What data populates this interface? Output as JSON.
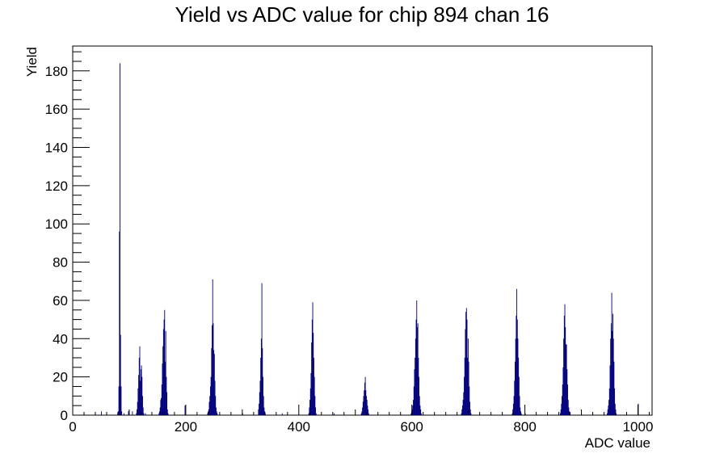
{
  "chart_data": {
    "type": "histogram",
    "title": "Yield vs ADC value for chip 894 chan 16",
    "xlabel": "ADC value",
    "ylabel": "Yield",
    "xlim": [
      0,
      1025
    ],
    "ylim": [
      0,
      193
    ],
    "x_ticks": [
      0,
      200,
      400,
      600,
      800,
      1000
    ],
    "y_ticks": [
      0,
      20,
      40,
      60,
      80,
      100,
      120,
      140,
      160,
      180
    ],
    "grid": false,
    "line_color": "#000080",
    "bins": [
      [
        50,
        2
      ],
      [
        79,
        1
      ],
      [
        80,
        2
      ],
      [
        81,
        15
      ],
      [
        82,
        96
      ],
      [
        83,
        184
      ],
      [
        84,
        42
      ],
      [
        85,
        15
      ],
      [
        86,
        2
      ],
      [
        90,
        1
      ],
      [
        98,
        2
      ],
      [
        105,
        2
      ],
      [
        112,
        1
      ],
      [
        113,
        3
      ],
      [
        114,
        7
      ],
      [
        115,
        14
      ],
      [
        116,
        21
      ],
      [
        117,
        30
      ],
      [
        118,
        36
      ],
      [
        119,
        18
      ],
      [
        120,
        24
      ],
      [
        121,
        26
      ],
      [
        122,
        20
      ],
      [
        123,
        10
      ],
      [
        124,
        4
      ],
      [
        125,
        1
      ],
      [
        128,
        1
      ],
      [
        152,
        1
      ],
      [
        153,
        2
      ],
      [
        154,
        4
      ],
      [
        155,
        8
      ],
      [
        156,
        9
      ],
      [
        157,
        16
      ],
      [
        158,
        27
      ],
      [
        159,
        36
      ],
      [
        160,
        45
      ],
      [
        161,
        50
      ],
      [
        162,
        55
      ],
      [
        163,
        28
      ],
      [
        164,
        44
      ],
      [
        165,
        20
      ],
      [
        166,
        12
      ],
      [
        167,
        3
      ],
      [
        168,
        1
      ],
      [
        198,
        5
      ],
      [
        238,
        1
      ],
      [
        239,
        2
      ],
      [
        240,
        3
      ],
      [
        241,
        7
      ],
      [
        242,
        10
      ],
      [
        243,
        15
      ],
      [
        244,
        20
      ],
      [
        245,
        35
      ],
      [
        246,
        47
      ],
      [
        247,
        71
      ],
      [
        248,
        48
      ],
      [
        249,
        34
      ],
      [
        250,
        32
      ],
      [
        251,
        18
      ],
      [
        252,
        10
      ],
      [
        253,
        4
      ],
      [
        254,
        2
      ],
      [
        255,
        1
      ],
      [
        300,
        1
      ],
      [
        328,
        3
      ],
      [
        329,
        6
      ],
      [
        330,
        12
      ],
      [
        331,
        18
      ],
      [
        332,
        30
      ],
      [
        333,
        40
      ],
      [
        334,
        69
      ],
      [
        335,
        35
      ],
      [
        336,
        20
      ],
      [
        337,
        10
      ],
      [
        338,
        4
      ],
      [
        339,
        2
      ],
      [
        340,
        1
      ],
      [
        370,
        1
      ],
      [
        417,
        1
      ],
      [
        418,
        4
      ],
      [
        419,
        8
      ],
      [
        420,
        14
      ],
      [
        421,
        22
      ],
      [
        422,
        38
      ],
      [
        423,
        50
      ],
      [
        424,
        59
      ],
      [
        425,
        43
      ],
      [
        426,
        30
      ],
      [
        427,
        20
      ],
      [
        428,
        10
      ],
      [
        429,
        4
      ],
      [
        430,
        1
      ],
      [
        462,
        1
      ],
      [
        510,
        1
      ],
      [
        511,
        2
      ],
      [
        512,
        4
      ],
      [
        513,
        7
      ],
      [
        514,
        10
      ],
      [
        515,
        13
      ],
      [
        516,
        17
      ],
      [
        517,
        20
      ],
      [
        518,
        13
      ],
      [
        519,
        10
      ],
      [
        520,
        8
      ],
      [
        521,
        5
      ],
      [
        522,
        3
      ],
      [
        523,
        1
      ],
      [
        598,
        1
      ],
      [
        599,
        2
      ],
      [
        600,
        3
      ],
      [
        601,
        5
      ],
      [
        602,
        8
      ],
      [
        603,
        15
      ],
      [
        604,
        24
      ],
      [
        605,
        30
      ],
      [
        606,
        40
      ],
      [
        607,
        50
      ],
      [
        608,
        60
      ],
      [
        609,
        46
      ],
      [
        610,
        48
      ],
      [
        611,
        30
      ],
      [
        612,
        20
      ],
      [
        613,
        10
      ],
      [
        614,
        5
      ],
      [
        615,
        3
      ],
      [
        616,
        1
      ],
      [
        687,
        1
      ],
      [
        688,
        3
      ],
      [
        689,
        5
      ],
      [
        690,
        8
      ],
      [
        691,
        12
      ],
      [
        692,
        20
      ],
      [
        693,
        30
      ],
      [
        694,
        45
      ],
      [
        695,
        54
      ],
      [
        696,
        56
      ],
      [
        697,
        50
      ],
      [
        698,
        30
      ],
      [
        699,
        40
      ],
      [
        700,
        28
      ],
      [
        701,
        15
      ],
      [
        702,
        7
      ],
      [
        703,
        3
      ],
      [
        704,
        1
      ],
      [
        777,
        1
      ],
      [
        778,
        3
      ],
      [
        779,
        6
      ],
      [
        780,
        10
      ],
      [
        781,
        18
      ],
      [
        782,
        28
      ],
      [
        783,
        40
      ],
      [
        784,
        52
      ],
      [
        785,
        66
      ],
      [
        786,
        50
      ],
      [
        787,
        40
      ],
      [
        788,
        30
      ],
      [
        789,
        20
      ],
      [
        790,
        10
      ],
      [
        791,
        4
      ],
      [
        792,
        2
      ],
      [
        793,
        1
      ],
      [
        800,
        1
      ],
      [
        862,
        1
      ],
      [
        863,
        3
      ],
      [
        864,
        6
      ],
      [
        865,
        10
      ],
      [
        866,
        16
      ],
      [
        867,
        25
      ],
      [
        868,
        40
      ],
      [
        869,
        52
      ],
      [
        870,
        58
      ],
      [
        871,
        46
      ],
      [
        872,
        37
      ],
      [
        873,
        37
      ],
      [
        874,
        24
      ],
      [
        875,
        16
      ],
      [
        876,
        8
      ],
      [
        877,
        4
      ],
      [
        878,
        2
      ],
      [
        879,
        1
      ],
      [
        945,
        1
      ],
      [
        946,
        3
      ],
      [
        947,
        5
      ],
      [
        948,
        8
      ],
      [
        949,
        14
      ],
      [
        950,
        26
      ],
      [
        951,
        40
      ],
      [
        952,
        48
      ],
      [
        953,
        64
      ],
      [
        954,
        44
      ],
      [
        955,
        53
      ],
      [
        956,
        40
      ],
      [
        957,
        28
      ],
      [
        958,
        14
      ],
      [
        959,
        6
      ],
      [
        960,
        3
      ],
      [
        961,
        1
      ],
      [
        1000,
        6
      ]
    ]
  }
}
